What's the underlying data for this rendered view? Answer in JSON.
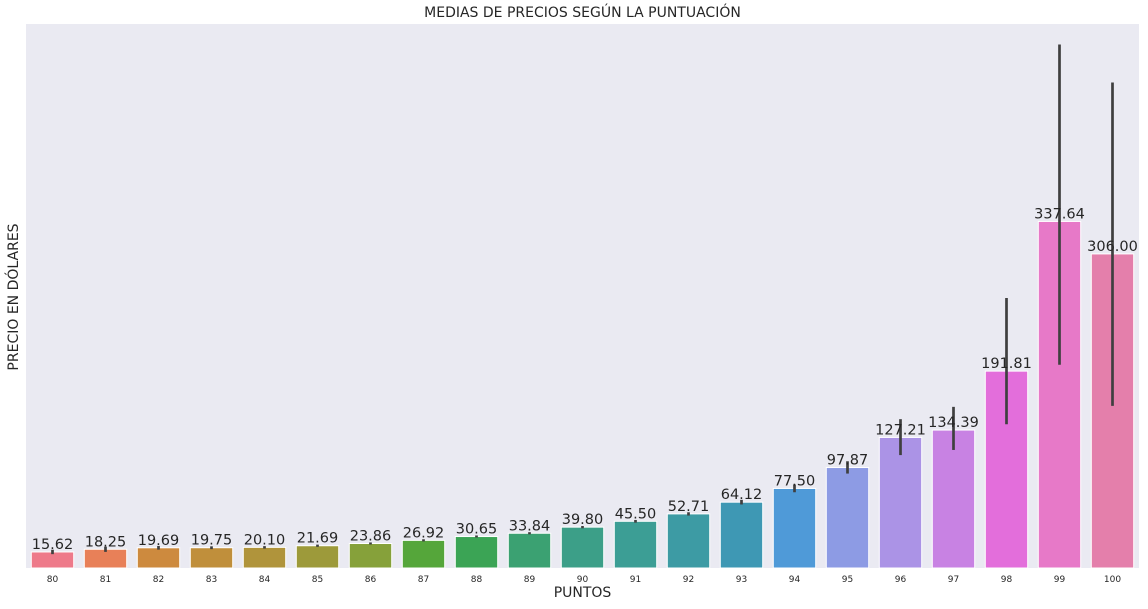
{
  "chart_data": {
    "type": "bar",
    "title": "MEDIAS DE PRECIOS SEGÚN LA PUNTUACIÓN",
    "xlabel": "PUNTOS",
    "ylabel": "PRECIO EN DÓLARES",
    "categories": [
      "80",
      "81",
      "82",
      "83",
      "84",
      "85",
      "86",
      "87",
      "88",
      "89",
      "90",
      "91",
      "92",
      "93",
      "94",
      "95",
      "96",
      "97",
      "98",
      "99",
      "100"
    ],
    "values": [
      15.62,
      18.25,
      19.69,
      19.75,
      20.1,
      21.69,
      23.86,
      26.92,
      30.65,
      33.84,
      39.8,
      45.5,
      52.71,
      64.12,
      77.5,
      97.87,
      127.21,
      134.39,
      191.81,
      337.64,
      306.0
    ],
    "value_labels": [
      "15.62",
      "18.25",
      "19.69",
      "19.75",
      "20.10",
      "21.69",
      "23.86",
      "26.92",
      "30.65",
      "33.84",
      "39.80",
      "45.50",
      "52.71",
      "64.12",
      "77.50",
      "97.87",
      "127.21",
      "134.39",
      "191.81",
      "337.64",
      "306.00"
    ],
    "error_bars": [
      [
        13.5,
        17.8
      ],
      [
        15.7,
        20.8
      ],
      [
        17.9,
        21.5
      ],
      [
        18.4,
        21.1
      ],
      [
        18.9,
        21.3
      ],
      [
        20.6,
        22.8
      ],
      [
        22.9,
        24.9
      ],
      [
        25.9,
        28.0
      ],
      [
        29.7,
        31.7
      ],
      [
        32.8,
        34.9
      ],
      [
        38.7,
        40.9
      ],
      [
        44.2,
        46.8
      ],
      [
        51.1,
        54.3
      ],
      [
        61.9,
        66.4
      ],
      [
        73.8,
        81.3
      ],
      [
        92.0,
        104.0
      ],
      [
        110.0,
        145.0
      ],
      [
        115.0,
        157.0
      ],
      [
        140.0,
        263.0
      ],
      [
        198.0,
        510.0
      ],
      [
        158.0,
        473.0
      ]
    ],
    "ylim": [
      0,
      530
    ],
    "grid": false,
    "colors": [
      "#ee7a8a",
      "#e88058",
      "#cd8a3e",
      "#c08f3b",
      "#b0943b",
      "#9d9a3a",
      "#86a13a",
      "#55a63a",
      "#3ba455",
      "#3ba172",
      "#3c9f88",
      "#3c9e95",
      "#3d9ba4",
      "#3e98b4",
      "#4f9ad8",
      "#8d9be4",
      "#ab93e6",
      "#c882e3",
      "#e36edb",
      "#e779c8",
      "#e47fab"
    ],
    "bar_edge_color": "#ffffff",
    "error_bar_color": "#3f3f3f",
    "plot_background": "#eaeaf2"
  }
}
